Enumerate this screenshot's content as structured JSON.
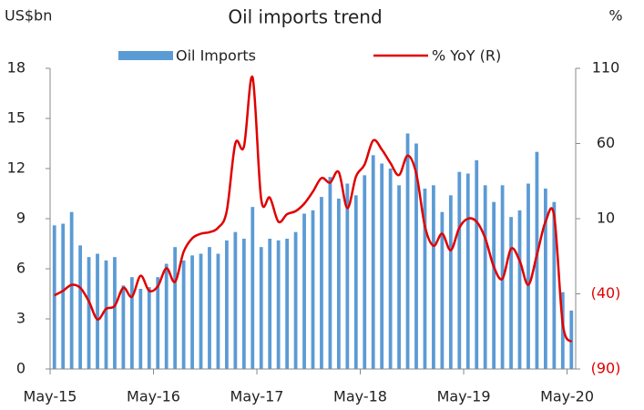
{
  "chart_data": {
    "type": "bar-line",
    "title": "Oil imports trend",
    "y_label": "US$bn",
    "y2_label": "%",
    "categories": [
      "May-15",
      null,
      null,
      null,
      null,
      null,
      null,
      null,
      null,
      null,
      null,
      null,
      "May-16",
      null,
      null,
      null,
      null,
      null,
      null,
      null,
      null,
      null,
      null,
      null,
      "May-17",
      null,
      null,
      null,
      null,
      null,
      null,
      null,
      null,
      null,
      null,
      null,
      "May-18",
      null,
      null,
      null,
      null,
      null,
      null,
      null,
      null,
      null,
      null,
      null,
      "May-19",
      null,
      null,
      null,
      null,
      null,
      null,
      null,
      null,
      null,
      null,
      null,
      "May-20"
    ],
    "series": [
      {
        "name": "Oil Imports",
        "type": "bar",
        "color": "#5b9bd5",
        "values": [
          8.6,
          8.7,
          9.4,
          7.4,
          6.7,
          6.9,
          6.5,
          6.7,
          5.0,
          5.5,
          4.8,
          4.9,
          5.5,
          6.3,
          7.3,
          6.5,
          6.8,
          6.9,
          7.3,
          6.9,
          7.7,
          8.2,
          7.8,
          9.7,
          7.3,
          7.8,
          7.7,
          7.8,
          8.2,
          9.3,
          9.5,
          10.3,
          11.5,
          10.2,
          11.1,
          10.4,
          11.6,
          12.8,
          12.3,
          12.0,
          11.0,
          14.1,
          13.5,
          10.8,
          11.0,
          9.4,
          10.4,
          11.8,
          11.7,
          12.5,
          11.0,
          10.0,
          11.0,
          9.1,
          9.5,
          11.1,
          13.0,
          10.8,
          10.0,
          4.6,
          3.5
        ]
      },
      {
        "name": "% YoY (R)",
        "type": "line",
        "axis": "y2",
        "color": "#e00000",
        "values": [
          -41,
          -38,
          -34,
          -36,
          -45,
          -57,
          -50,
          -48,
          -36,
          -42,
          -28,
          -38,
          -35,
          -23,
          -32,
          -12,
          -3,
          0,
          1,
          4,
          15,
          60,
          58,
          104,
          23,
          24,
          8,
          13,
          15,
          20,
          28,
          37,
          34,
          41,
          17,
          38,
          46,
          62,
          56,
          47,
          39,
          52,
          40,
          5,
          -8,
          0,
          -11,
          4,
          10,
          8,
          -3,
          -22,
          -30,
          -10,
          -18,
          -34,
          -14,
          8,
          12,
          -60,
          -72
        ]
      }
    ],
    "ylim": [
      0,
      18
    ],
    "yticks": [
      0,
      3,
      6,
      9,
      12,
      15,
      18
    ],
    "y2lim": [
      -90,
      110
    ],
    "y2ticks": [
      {
        "value": -90,
        "label": "(90)"
      },
      {
        "value": -40,
        "label": "(40)"
      },
      10,
      60,
      110
    ],
    "negative_label_color": "#e00000"
  }
}
